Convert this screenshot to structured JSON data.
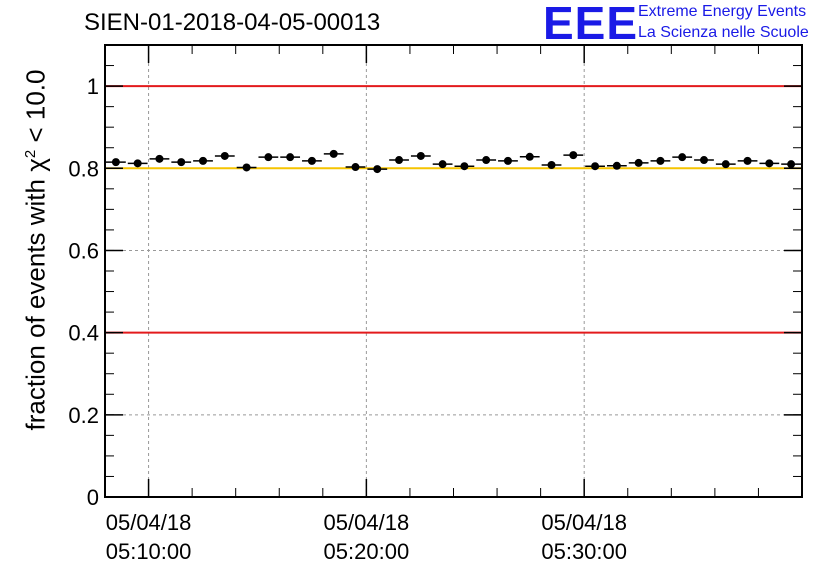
{
  "header": {
    "run_title": "SIEN-01-2018-04-05-00013",
    "logo_text": "EEE",
    "logo_line1": "Extreme Energy Events",
    "logo_line2": "La Scienza nelle Scuole"
  },
  "chart_data": {
    "type": "scatter",
    "title": "SIEN-01-2018-04-05-00013",
    "xlabel": "",
    "ylabel_prefix": "fraction of events with ",
    "ylabel_symbol": "χ",
    "ylabel_exp": "2",
    "ylabel_suffix": " < 10.0",
    "x_unit": "minutes after 05:00:00",
    "xlim": [
      8.0,
      40.0
    ],
    "ylim": [
      0,
      1.1
    ],
    "y_ticks": [
      0,
      0.2,
      0.4,
      0.6,
      0.8,
      1.0
    ],
    "y_tick_labels": [
      "0",
      "0.2",
      "0.4",
      "0.6",
      "0.8",
      "1"
    ],
    "x_major_ticks": [
      10,
      20,
      30
    ],
    "x_tick_labels": [
      {
        "date": "05/04/18",
        "time": "05:10:00"
      },
      {
        "date": "05/04/18",
        "time": "05:20:00"
      },
      {
        "date": "05/04/18",
        "time": "05:30:00"
      }
    ],
    "grid": true,
    "bin_width_min": 1.0,
    "x": [
      8.5,
      9.5,
      10.5,
      11.5,
      12.5,
      13.5,
      14.5,
      15.5,
      16.5,
      17.5,
      18.5,
      19.5,
      20.5,
      21.5,
      22.5,
      23.5,
      24.5,
      25.5,
      26.5,
      27.5,
      28.5,
      29.5,
      30.5,
      31.5,
      32.5,
      33.5,
      34.5,
      35.5,
      36.5,
      37.5,
      38.5,
      39.5
    ],
    "series": [
      {
        "name": "fraction",
        "values": [
          0.815,
          0.812,
          0.823,
          0.815,
          0.818,
          0.83,
          0.802,
          0.827,
          0.827,
          0.818,
          0.835,
          0.803,
          0.798,
          0.82,
          0.83,
          0.81,
          0.805,
          0.82,
          0.818,
          0.828,
          0.808,
          0.832,
          0.805,
          0.806,
          0.813,
          0.818,
          0.827,
          0.82,
          0.81,
          0.818,
          0.812,
          0.81
        ]
      }
    ],
    "reference_lines": [
      {
        "name": "upper limit",
        "y": 1.0,
        "color": "#e31a1c"
      },
      {
        "name": "target",
        "y": 0.8,
        "color": "#f5c400"
      },
      {
        "name": "lower limit",
        "y": 0.4,
        "color": "#e31a1c"
      }
    ]
  }
}
